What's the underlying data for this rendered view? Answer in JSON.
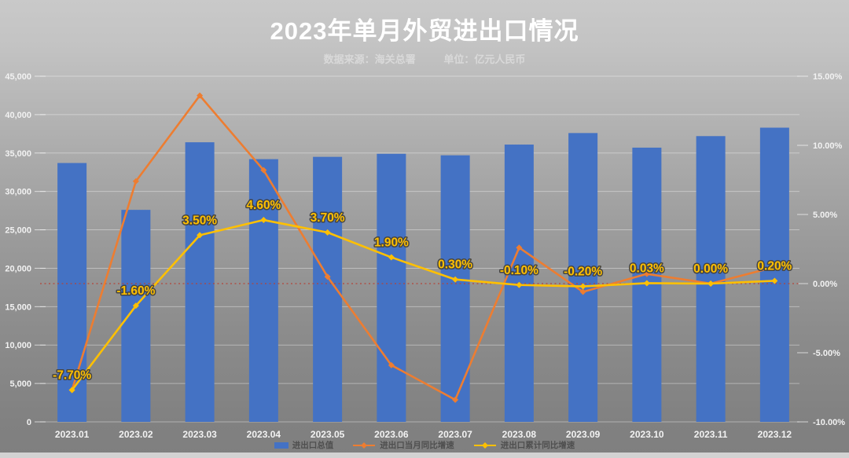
{
  "header": {
    "title": "2023年单月外贸进出口情况",
    "source": "数据来源：海关总署",
    "unit": "单位：亿元人民币"
  },
  "colors": {
    "bar_blue": "#4472c4",
    "line_orange": "#ed7d31",
    "line_yellow": "#ffc000",
    "zero_line_red": "#b2443a",
    "axis_text": "#f2f2f2",
    "gridline": "rgba(255,255,255,0.38)",
    "label_outline": "#454545"
  },
  "chart_data": {
    "type": "bar",
    "title": "2023年单月外贸进出口情况",
    "subtitle": "数据来源：海关总署  单位：亿元人民币",
    "categories": [
      "2023.01",
      "2023.02",
      "2023.03",
      "2023.04",
      "2023.05",
      "2023.06",
      "2023.07",
      "2023.08",
      "2023.09",
      "2023.10",
      "2023.11",
      "2023.12"
    ],
    "series": [
      {
        "name": "进出口总值",
        "type": "bar",
        "axis": "left",
        "color": "#4472c4",
        "values": [
          33700,
          27600,
          36400,
          34200,
          34500,
          34900,
          34700,
          36100,
          37600,
          35700,
          37200,
          38300
        ]
      },
      {
        "name": "进出口当月同比增速",
        "type": "line",
        "axis": "right",
        "color": "#ed7d31",
        "values": [
          -7.7,
          7.4,
          13.6,
          8.2,
          0.5,
          -5.9,
          -8.4,
          2.6,
          -0.6,
          0.7,
          0.0,
          1.2
        ]
      },
      {
        "name": "进出口累计同比增速",
        "type": "line",
        "axis": "right",
        "color": "#ffc000",
        "values": [
          -7.7,
          -1.6,
          3.5,
          4.6,
          3.7,
          1.9,
          0.3,
          -0.1,
          -0.2,
          0.03,
          0.0,
          0.2
        ],
        "labels": [
          "-7.70%",
          "-1.60%",
          "3.50%",
          "4.60%",
          "3.70%",
          "1.90%",
          "0.30%",
          "-0.10%",
          "-0.20%",
          "0.03%",
          "0.00%",
          "0.20%"
        ]
      }
    ],
    "left_axis": {
      "min": 0,
      "max": 45000,
      "step": 5000,
      "tick_labels": [
        "0",
        "5,000",
        "10,000",
        "15,000",
        "20,000",
        "25,000",
        "30,000",
        "35,000",
        "40,000",
        "45,000"
      ]
    },
    "right_axis": {
      "min": -10,
      "max": 15,
      "step": 5,
      "tick_labels": [
        "-10.00%",
        "-5.00%",
        "0.00%",
        "5.00%",
        "10.00%",
        "15.00%"
      ]
    },
    "zero_reference_line": {
      "value_right_axis": 0,
      "style": "dotted",
      "color": "#b2443a"
    },
    "grid": "horizontal",
    "legend_position": "bottom"
  }
}
